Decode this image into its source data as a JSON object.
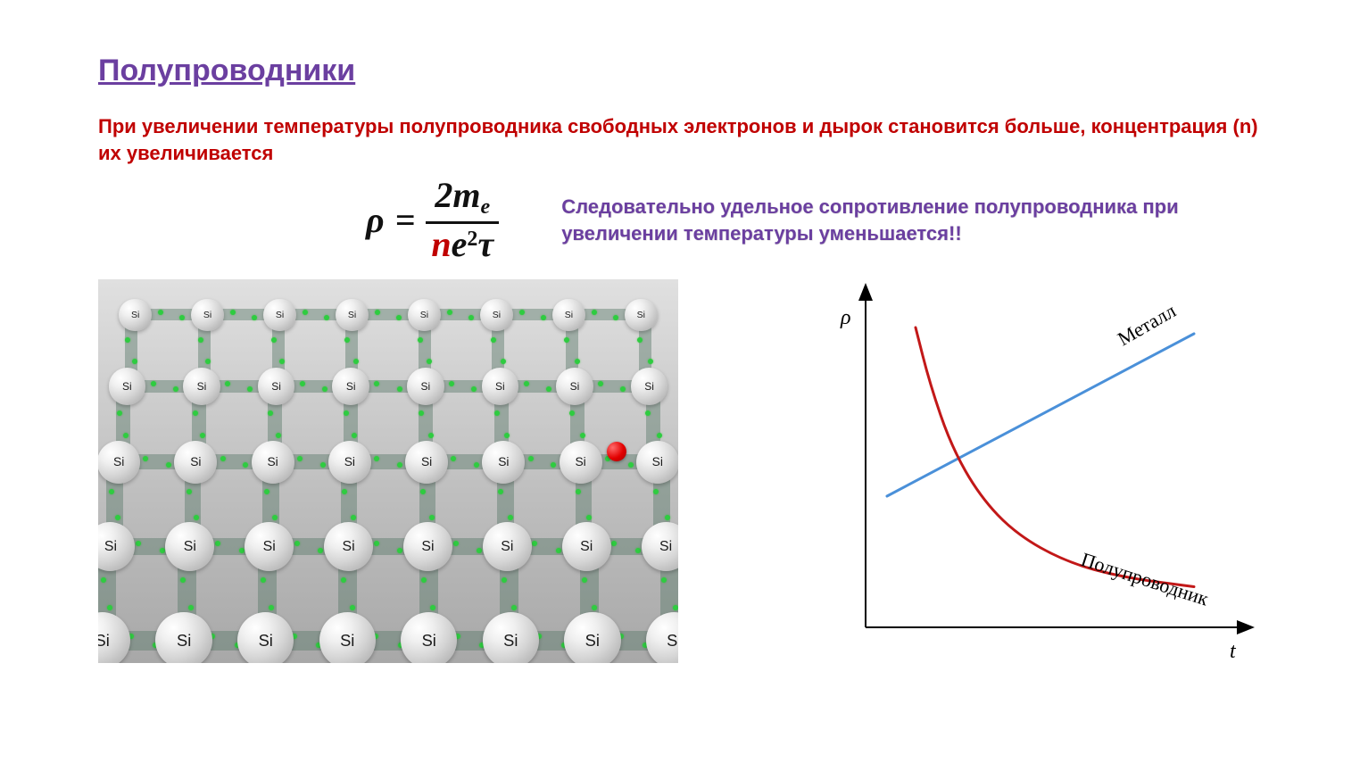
{
  "title": "Полупроводники",
  "intro_text": "При увеличении температуры полупроводника свободных электронов и дырок становится больше, концентрация (n) их увеличивается",
  "formula": {
    "lhs_var": "ρ",
    "equals": "=",
    "numerator_coeff": "2",
    "numerator_var": "m",
    "numerator_sub": "e",
    "denominator_n": "n",
    "denominator_e": "e",
    "denominator_exp": "2",
    "denominator_tau": "τ",
    "n_color": "#c00000"
  },
  "consequence_text": "Следовательно удельное сопротивление полупроводника при увеличении температуры уменьшается!!",
  "lattice": {
    "atom_label": "Si",
    "rows": 5,
    "cols": 8,
    "bg_gradient_top": "#e0e0e0",
    "bg_gradient_bottom": "#a8a8a8",
    "atom_gradient": "radial-gradient(circle at 32% 28%, #ffffff, #d4d4d4, #a0a0a0)",
    "bond_color": "#5a7a6a",
    "dot_color": "#2ecc40",
    "electron_color": "#e20000",
    "electron_pos": {
      "row": 2,
      "col": 6,
      "offset_x": 40,
      "offset_y": -12
    }
  },
  "chart": {
    "type": "line",
    "y_axis_label": "ρ",
    "x_axis_label": "t",
    "axis_color": "#000000",
    "axis_width": 2,
    "xlim": [
      0,
      100
    ],
    "ylim": [
      0,
      100
    ],
    "series": [
      {
        "name": "Металл",
        "label": "Металл",
        "color": "#4a90d9",
        "width": 3,
        "points": [
          [
            6,
            42
          ],
          [
            92,
            94
          ]
        ],
        "label_pos": [
          72,
          90
        ],
        "label_angle": -30
      },
      {
        "name": "Полупроводник",
        "label": "Полупроводник",
        "color": "#c21818",
        "width": 3,
        "points": [
          [
            14,
            96
          ],
          [
            18,
            78
          ],
          [
            24,
            58
          ],
          [
            32,
            42
          ],
          [
            42,
            30
          ],
          [
            56,
            21
          ],
          [
            72,
            16
          ],
          [
            92,
            13
          ]
        ],
        "label_pos": [
          60,
          20
        ],
        "label_angle": 18
      }
    ]
  },
  "colors": {
    "title": "#6b3fa0",
    "red_text": "#c00000",
    "purple_text": "#6b3fa0",
    "background": "#ffffff"
  },
  "fonts": {
    "body": "Arial",
    "math": "Cambria Math",
    "chart": "Times New Roman"
  }
}
